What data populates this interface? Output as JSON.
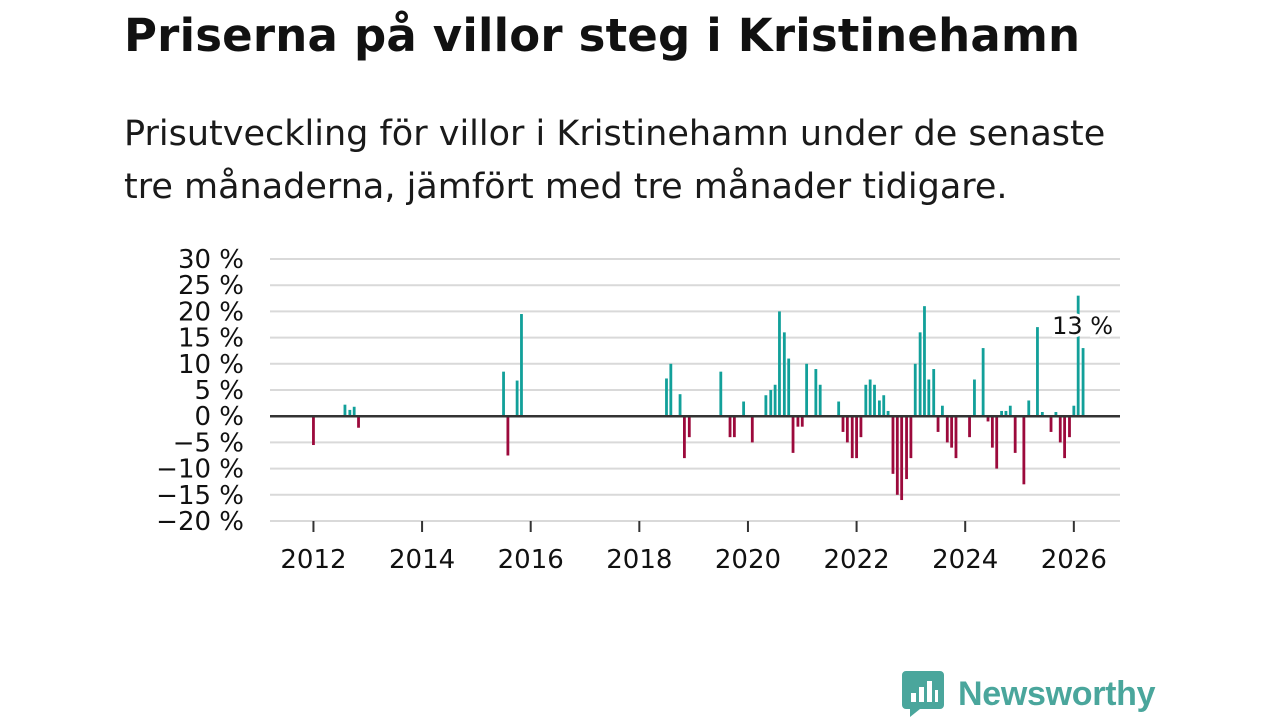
{
  "title": "Priserna på villor steg i Kristinehamn",
  "subtitle": "Prisutveckling för villor i Kristinehamn under de senaste tre månaderna, jämfört med tre månader tidigare.",
  "brand": {
    "name": "Newsworthy",
    "color": "#4aa69c"
  },
  "colors": {
    "positive": "#12a09a",
    "negative": "#9c0a3c",
    "grid": "#d9d9d9",
    "zero": "#333333",
    "text": "#111111"
  },
  "chart_data": {
    "type": "bar",
    "title": "Priserna på villor steg i Kristinehamn",
    "xlabel": "",
    "ylabel": "",
    "ylim": [
      -20,
      30
    ],
    "xlim": [
      2011.2,
      2026.85
    ],
    "y_ticks": [
      30,
      25,
      20,
      15,
      10,
      5,
      0,
      -5,
      -10,
      -15,
      -20
    ],
    "y_tick_labels": [
      "30 %",
      "25 %",
      "20 %",
      "15 %",
      "10 %",
      "5 %",
      "0 %",
      "−5 %",
      "−10 %",
      "−15 %",
      "−20 %"
    ],
    "x_ticks": [
      2012,
      2014,
      2016,
      2018,
      2020,
      2022,
      2024,
      2026
    ],
    "x_tick_labels": [
      "2012",
      "2014",
      "2016",
      "2018",
      "2020",
      "2022",
      "2024",
      "2026"
    ],
    "annotation": {
      "x": 2026.17,
      "value": 13,
      "label": "13 %"
    },
    "points": [
      {
        "x": 2012.0,
        "y": -5.5
      },
      {
        "x": 2012.58,
        "y": 2.2
      },
      {
        "x": 2012.67,
        "y": 1.2
      },
      {
        "x": 2012.75,
        "y": 1.8
      },
      {
        "x": 2012.83,
        "y": -2.2
      },
      {
        "x": 2015.5,
        "y": 8.5
      },
      {
        "x": 2015.58,
        "y": -7.5
      },
      {
        "x": 2015.75,
        "y": 6.8
      },
      {
        "x": 2015.83,
        "y": 19.5
      },
      {
        "x": 2018.5,
        "y": 7.2
      },
      {
        "x": 2018.58,
        "y": 10.0
      },
      {
        "x": 2018.75,
        "y": 4.2
      },
      {
        "x": 2018.83,
        "y": -8.0
      },
      {
        "x": 2018.92,
        "y": -4.0
      },
      {
        "x": 2019.5,
        "y": 8.5
      },
      {
        "x": 2019.67,
        "y": -4.0
      },
      {
        "x": 2019.75,
        "y": -4.0
      },
      {
        "x": 2019.92,
        "y": 2.8
      },
      {
        "x": 2020.08,
        "y": -5.0
      },
      {
        "x": 2020.33,
        "y": 4.0
      },
      {
        "x": 2020.42,
        "y": 5.0
      },
      {
        "x": 2020.5,
        "y": 6.0
      },
      {
        "x": 2020.58,
        "y": 20.0
      },
      {
        "x": 2020.67,
        "y": 16.0
      },
      {
        "x": 2020.75,
        "y": 11.0
      },
      {
        "x": 2020.83,
        "y": -7.0
      },
      {
        "x": 2020.92,
        "y": -2.0
      },
      {
        "x": 2021.0,
        "y": -2.0
      },
      {
        "x": 2021.08,
        "y": 10.0
      },
      {
        "x": 2021.25,
        "y": 9.0
      },
      {
        "x": 2021.33,
        "y": 6.0
      },
      {
        "x": 2021.67,
        "y": 2.8
      },
      {
        "x": 2021.75,
        "y": -3.0
      },
      {
        "x": 2021.83,
        "y": -5.0
      },
      {
        "x": 2021.92,
        "y": -8.0
      },
      {
        "x": 2022.0,
        "y": -8.0
      },
      {
        "x": 2022.08,
        "y": -4.0
      },
      {
        "x": 2022.17,
        "y": 6.0
      },
      {
        "x": 2022.25,
        "y": 7.0
      },
      {
        "x": 2022.33,
        "y": 6.0
      },
      {
        "x": 2022.42,
        "y": 3.0
      },
      {
        "x": 2022.5,
        "y": 4.0
      },
      {
        "x": 2022.58,
        "y": 1.0
      },
      {
        "x": 2022.67,
        "y": -11.0
      },
      {
        "x": 2022.75,
        "y": -15.0
      },
      {
        "x": 2022.83,
        "y": -16.0
      },
      {
        "x": 2022.92,
        "y": -12.0
      },
      {
        "x": 2023.0,
        "y": -8.0
      },
      {
        "x": 2023.08,
        "y": 10.0
      },
      {
        "x": 2023.17,
        "y": 16.0
      },
      {
        "x": 2023.25,
        "y": 21.0
      },
      {
        "x": 2023.33,
        "y": 7.0
      },
      {
        "x": 2023.42,
        "y": 9.0
      },
      {
        "x": 2023.5,
        "y": -3.0
      },
      {
        "x": 2023.58,
        "y": 2.0
      },
      {
        "x": 2023.67,
        "y": -5.0
      },
      {
        "x": 2023.75,
        "y": -6.0
      },
      {
        "x": 2023.83,
        "y": -8.0
      },
      {
        "x": 2024.08,
        "y": -4.0
      },
      {
        "x": 2024.17,
        "y": 7.0
      },
      {
        "x": 2024.33,
        "y": 13.0
      },
      {
        "x": 2024.42,
        "y": -1.0
      },
      {
        "x": 2024.5,
        "y": -6.0
      },
      {
        "x": 2024.58,
        "y": -10.0
      },
      {
        "x": 2024.67,
        "y": 1.0
      },
      {
        "x": 2024.75,
        "y": 1.0
      },
      {
        "x": 2024.83,
        "y": 2.0
      },
      {
        "x": 2024.92,
        "y": -7.0
      },
      {
        "x": 2025.08,
        "y": -13.0
      },
      {
        "x": 2025.17,
        "y": 3.0
      },
      {
        "x": 2025.33,
        "y": 17.0
      },
      {
        "x": 2025.42,
        "y": 0.8
      },
      {
        "x": 2025.58,
        "y": -3.0
      },
      {
        "x": 2025.67,
        "y": 0.8
      },
      {
        "x": 2025.75,
        "y": -5.0
      },
      {
        "x": 2025.83,
        "y": -8.0
      },
      {
        "x": 2025.92,
        "y": -4.0
      },
      {
        "x": 2026.0,
        "y": 2.0
      },
      {
        "x": 2026.08,
        "y": 23.0
      },
      {
        "x": 2026.17,
        "y": 13.0
      }
    ]
  }
}
